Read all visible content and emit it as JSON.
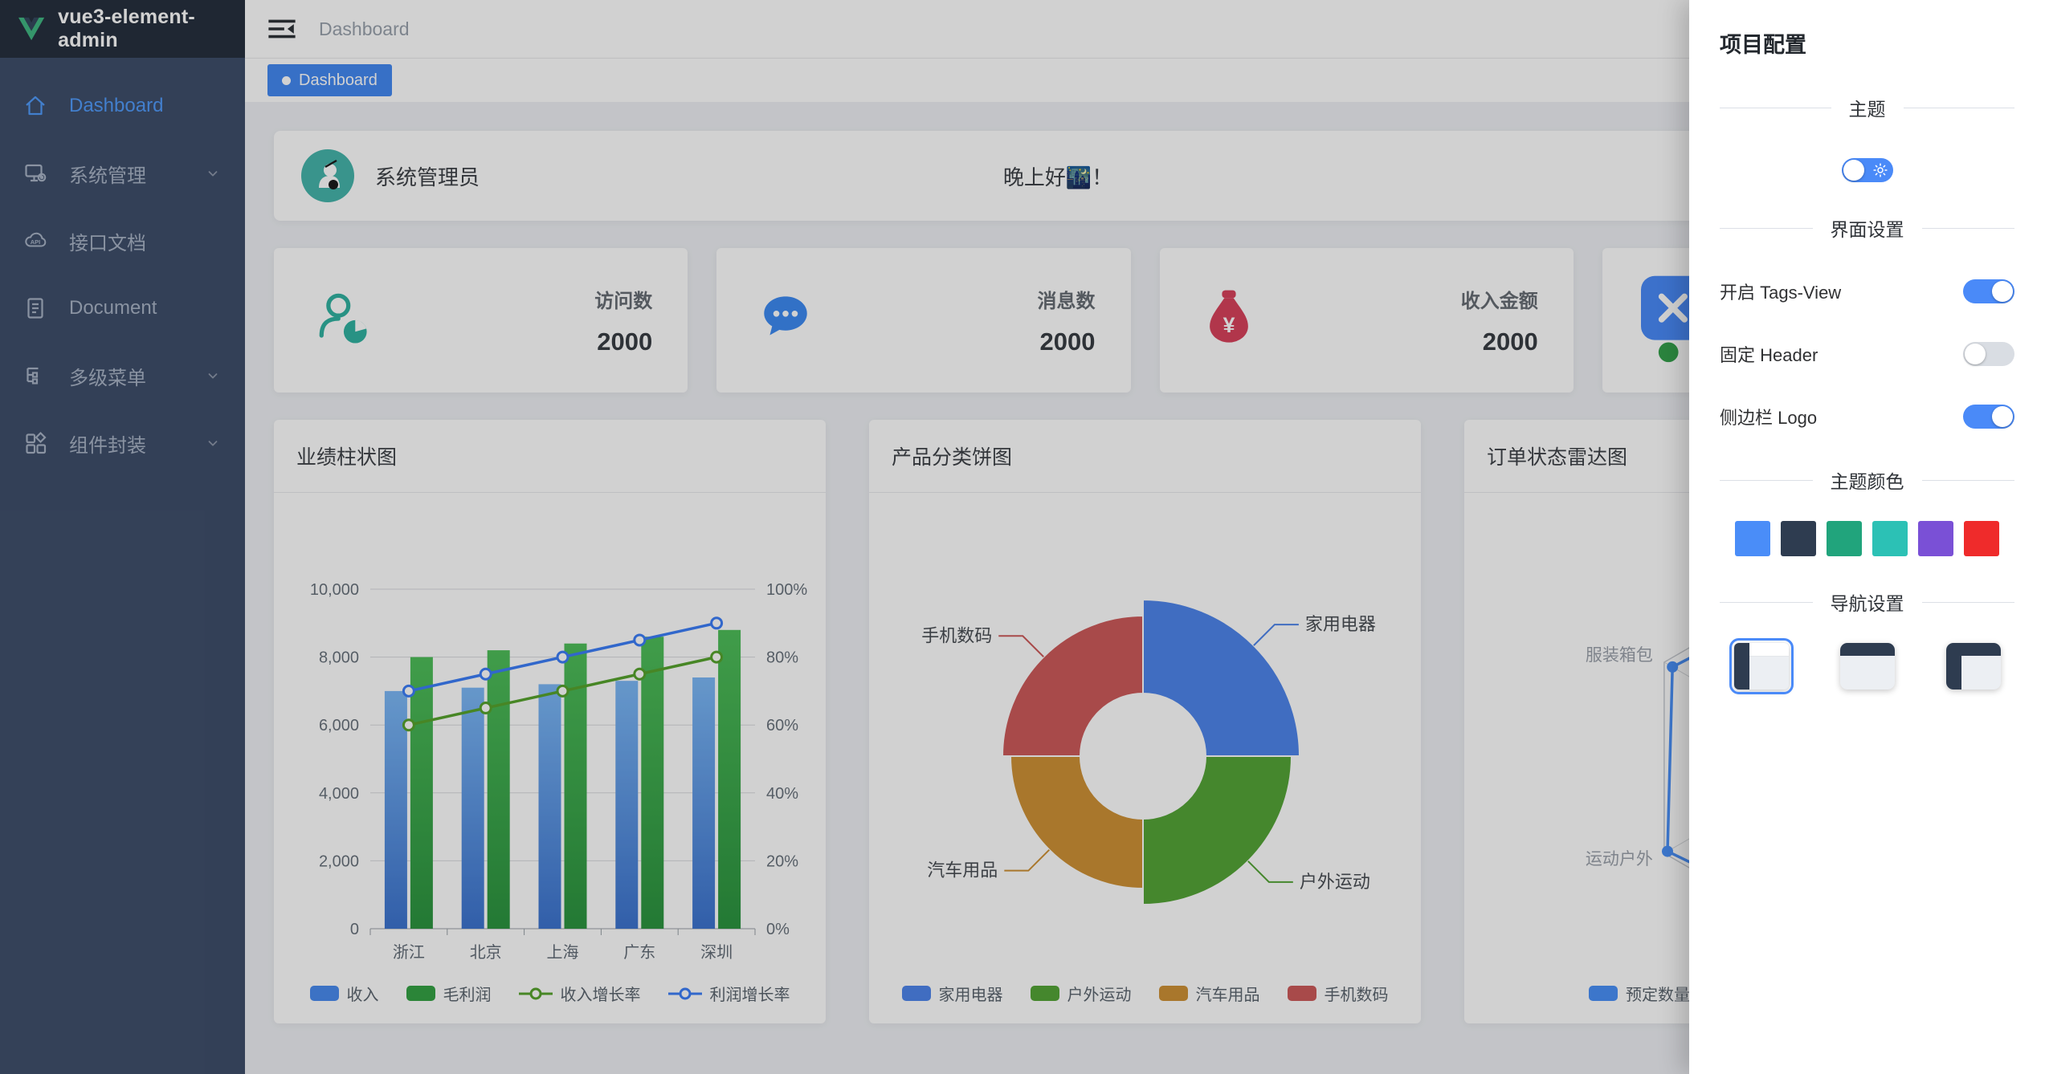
{
  "app": {
    "logo_title": "vue3-element-admin"
  },
  "sidebar": {
    "items": [
      {
        "key": "dashboard",
        "label": "Dashboard",
        "icon": "home-icon",
        "active": true,
        "expandable": false
      },
      {
        "key": "system",
        "label": "系统管理",
        "icon": "system-icon",
        "active": false,
        "expandable": true
      },
      {
        "key": "api-docs",
        "label": "接口文档",
        "icon": "api-icon",
        "active": false,
        "expandable": false
      },
      {
        "key": "document",
        "label": "Document",
        "icon": "document-icon",
        "active": false,
        "expandable": false
      },
      {
        "key": "multi-menu",
        "label": "多级菜单",
        "icon": "menu-tree-icon",
        "active": false,
        "expandable": true
      },
      {
        "key": "components",
        "label": "组件封装",
        "icon": "components-icon",
        "active": false,
        "expandable": true
      }
    ]
  },
  "navbar": {
    "breadcrumb": "Dashboard"
  },
  "tags_view": [
    {
      "label": "Dashboard",
      "active": true
    }
  ],
  "greeting": {
    "username": "系统管理员",
    "message": "晚上好🌃！"
  },
  "stat_cards": [
    {
      "key": "visits",
      "label": "访问数",
      "value": "2000",
      "icon": "user-chart-icon",
      "icon_color": "#31b3a2"
    },
    {
      "key": "messages",
      "label": "消息数",
      "value": "2000",
      "icon": "chat-bubble-icon",
      "icon_color": "#3d8af2"
    },
    {
      "key": "income",
      "label": "收入金额",
      "value": "2000",
      "icon": "money-bag-icon",
      "icon_color": "#d8425c"
    },
    {
      "key": "orders",
      "label": "",
      "value": "",
      "icon": "close-square-icon",
      "icon_color": "#4a8af8"
    }
  ],
  "chart_data": [
    {
      "type": "bar",
      "title": "业绩柱状图",
      "categories": [
        "浙江",
        "北京",
        "上海",
        "广东",
        "深圳"
      ],
      "series": [
        {
          "name": "收入",
          "kind": "bar",
          "axis": "left",
          "values": [
            7000,
            7100,
            7200,
            7300,
            7400
          ],
          "color": "#4a8cf0"
        },
        {
          "name": "毛利润",
          "kind": "bar",
          "axis": "left",
          "values": [
            8000,
            8200,
            8400,
            8600,
            8800
          ],
          "color": "#35a345"
        },
        {
          "name": "收入增长率",
          "kind": "line",
          "axis": "right",
          "values": [
            60,
            65,
            70,
            75,
            80
          ],
          "color": "#57a42e"
        },
        {
          "name": "利润增长率",
          "kind": "line",
          "axis": "right",
          "values": [
            70,
            75,
            80,
            85,
            90
          ],
          "color": "#3c7ef8"
        }
      ],
      "left_axis": {
        "min": 0,
        "max": 10000,
        "ticks": [
          "0",
          "2,000",
          "4,000",
          "6,000",
          "8,000",
          "10,000"
        ]
      },
      "right_axis": {
        "min": 0,
        "max": 100,
        "ticks": [
          "0%",
          "20%",
          "40%",
          "60%",
          "80%",
          "100%"
        ]
      },
      "grid": true,
      "legend_position": "bottom"
    },
    {
      "type": "pie",
      "title": "产品分类饼图",
      "donut": true,
      "rose_type": "area",
      "slices": [
        {
          "name": "家用电器",
          "value": 30,
          "color": "#4f86ec"
        },
        {
          "name": "户外运动",
          "value": 28,
          "color": "#55a537"
        },
        {
          "name": "汽车用品",
          "value": 24,
          "color": "#cf9236"
        },
        {
          "name": "手机数码",
          "value": 26,
          "color": "#cd5b5b"
        }
      ],
      "legend_position": "bottom"
    },
    {
      "type": "radar",
      "title": "订单状态雷达图",
      "indicators_visible": [
        "服装箱包",
        "运动户外"
      ],
      "series": [
        {
          "name": "预定数量",
          "color": "#4a90f8",
          "values_fraction": [
            0.9,
            0.85,
            0.8,
            0.9,
            0.98,
            0.95
          ]
        },
        {
          "name": "",
          "color": "#4caf50",
          "values_fraction": [
            0.5,
            0.55,
            0.5,
            0.6,
            0.62,
            0.55
          ]
        }
      ],
      "legend_visible": [
        "预定数量"
      ]
    }
  ],
  "settings_drawer": {
    "title": "项目配置",
    "sections": {
      "theme": {
        "label": "主题",
        "switch_state": "light",
        "switch_icon": "sun-icon"
      },
      "interface": {
        "label": "界面设置",
        "toggles": [
          {
            "label": "开启 Tags-View",
            "enabled": true
          },
          {
            "label": "固定 Header",
            "enabled": false
          },
          {
            "label": "侧边栏 Logo",
            "enabled": true
          }
        ]
      },
      "theme_color": {
        "label": "主题颜色",
        "colors": [
          "#4a8df8",
          "#2e3c50",
          "#21a47c",
          "#2cc1b5",
          "#7a50d6",
          "#ef2b2b"
        ]
      },
      "navigation": {
        "label": "导航设置",
        "layouts": [
          {
            "key": "left-sidebar",
            "selected": true
          },
          {
            "key": "top-bar",
            "selected": false
          },
          {
            "key": "mix",
            "selected": false
          }
        ]
      }
    }
  }
}
